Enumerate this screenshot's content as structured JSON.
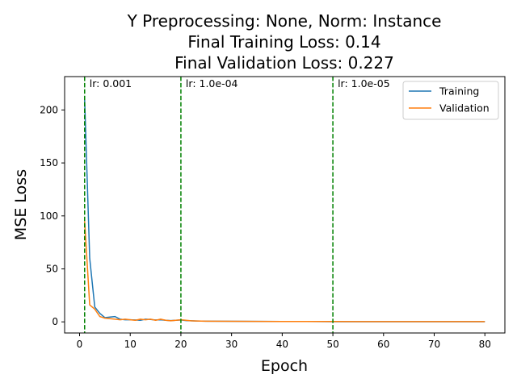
{
  "chart_data": {
    "type": "line",
    "title_lines": [
      "Y Preprocessing: None, Norm: Instance",
      "Final Training Loss: 0.14",
      "Final Validation Loss: 0.227"
    ],
    "xlabel": "Epoch",
    "ylabel": "MSE Loss",
    "xlim": [
      -2.95,
      83.95
    ],
    "ylim": [
      -10.5,
      231.5
    ],
    "xticks": [
      0,
      10,
      20,
      30,
      40,
      50,
      60,
      70,
      80
    ],
    "yticks": [
      0,
      50,
      100,
      150,
      200
    ],
    "grid": false,
    "legend_position": "top-right",
    "series": [
      {
        "name": "Training",
        "color": "#1f77b4",
        "x": [
          1,
          2,
          3,
          4,
          5,
          6,
          7,
          8,
          9,
          10,
          11,
          12,
          13,
          14,
          15,
          16,
          17,
          18,
          19,
          20,
          21,
          22,
          23,
          24,
          25,
          30,
          35,
          40,
          45,
          50,
          55,
          60,
          65,
          70,
          75,
          80
        ],
        "y": [
          210,
          60,
          14,
          8,
          4,
          4.5,
          5,
          2.5,
          2,
          2,
          1.8,
          1.5,
          2.5,
          2.2,
          1.8,
          2,
          1.5,
          1.2,
          1.5,
          1.8,
          1.2,
          1,
          0.8,
          0.7,
          0.6,
          0.5,
          0.4,
          0.3,
          0.3,
          0.2,
          0.2,
          0.2,
          0.15,
          0.15,
          0.14,
          0.14
        ]
      },
      {
        "name": "Validation",
        "color": "#ff7f0e",
        "x": [
          1,
          2,
          3,
          4,
          5,
          6,
          7,
          8,
          9,
          10,
          11,
          12,
          13,
          14,
          15,
          16,
          17,
          18,
          19,
          20,
          21,
          22,
          23,
          24,
          25,
          30,
          35,
          40,
          45,
          50,
          55,
          60,
          65,
          70,
          75,
          80
        ],
        "y": [
          95,
          16,
          12,
          5,
          3.5,
          3,
          2.5,
          2,
          2.5,
          2,
          1.5,
          2.5,
          2,
          2.5,
          1.5,
          2.5,
          1.5,
          1,
          1.5,
          2,
          1.5,
          1,
          0.8,
          0.7,
          0.6,
          0.5,
          0.4,
          0.35,
          0.3,
          0.3,
          0.28,
          0.26,
          0.25,
          0.24,
          0.23,
          0.227
        ]
      }
    ],
    "vlines": [
      {
        "x": 1,
        "color": "#008000",
        "label": "lr: 0.001"
      },
      {
        "x": 20,
        "color": "#008000",
        "label": "lr: 1.0e-04"
      },
      {
        "x": 50,
        "color": "#008000",
        "label": "lr: 1.0e-05"
      }
    ]
  }
}
